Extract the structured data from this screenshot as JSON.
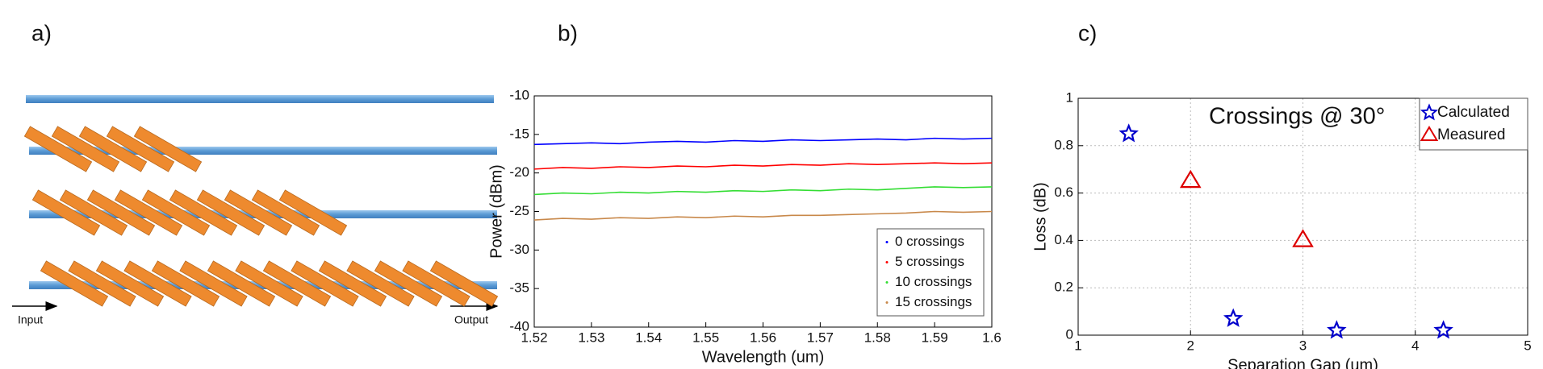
{
  "panel_labels": [
    "a)",
    "b)",
    "c)"
  ],
  "diagram": {
    "input_label": "Input",
    "output_label": "Output"
  },
  "chart_data": [
    {
      "type": "line",
      "xlabel": "Wavelength (um)",
      "ylabel": "Power (dBm)",
      "x": [
        1.52,
        1.525,
        1.53,
        1.535,
        1.54,
        1.545,
        1.55,
        1.555,
        1.56,
        1.565,
        1.57,
        1.575,
        1.58,
        1.585,
        1.59,
        1.595,
        1.6
      ],
      "series": [
        {
          "name": "0 crossings",
          "color": "#0000ff",
          "values": [
            -16.3,
            -16.2,
            -16.1,
            -16.2,
            -16.0,
            -15.9,
            -16.0,
            -15.8,
            -15.9,
            -15.7,
            -15.8,
            -15.7,
            -15.6,
            -15.7,
            -15.5,
            -15.6,
            -15.5
          ]
        },
        {
          "name": "5 crossings",
          "color": "#ff0000",
          "values": [
            -19.5,
            -19.3,
            -19.4,
            -19.2,
            -19.3,
            -19.1,
            -19.2,
            -19.0,
            -19.1,
            -18.9,
            -19.0,
            -18.8,
            -18.9,
            -18.8,
            -18.7,
            -18.8,
            -18.7
          ]
        },
        {
          "name": "10 crossings",
          "color": "#33dd33",
          "values": [
            -22.8,
            -22.6,
            -22.7,
            -22.5,
            -22.6,
            -22.4,
            -22.5,
            -22.3,
            -22.4,
            -22.2,
            -22.3,
            -22.1,
            -22.2,
            -22.0,
            -21.8,
            -21.9,
            -21.8
          ]
        },
        {
          "name": "15 crossings",
          "color": "#c8884a",
          "values": [
            -26.1,
            -25.9,
            -26.0,
            -25.8,
            -25.9,
            -25.7,
            -25.8,
            -25.6,
            -25.7,
            -25.5,
            -25.5,
            -25.4,
            -25.3,
            -25.2,
            -25.0,
            -25.1,
            -25.0
          ]
        }
      ],
      "xlim": [
        1.52,
        1.6
      ],
      "xticks": [
        1.52,
        1.53,
        1.54,
        1.55,
        1.56,
        1.57,
        1.58,
        1.59,
        1.6
      ],
      "ylim": [
        -40,
        -10
      ],
      "yticks": [
        -40,
        -35,
        -30,
        -25,
        -20,
        -15,
        -10
      ],
      "grid": false,
      "legend": "lower right"
    },
    {
      "type": "scatter",
      "annotation": "Crossings @ 30°",
      "xlabel": "Separation Gap (um)",
      "ylabel": "Loss (dB)",
      "series": [
        {
          "name": "Calculated",
          "color": "#0000cc",
          "marker": "star",
          "x": [
            1.45,
            2.38,
            3.3,
            4.25
          ],
          "values": [
            0.85,
            0.07,
            0.02,
            0.02
          ]
        },
        {
          "name": "Measured",
          "color": "#dd0000",
          "marker": "triangle",
          "x": [
            2,
            3
          ],
          "values": [
            0.65,
            0.4
          ]
        }
      ],
      "xlim": [
        1,
        5
      ],
      "xticks": [
        1,
        2,
        3,
        4,
        5
      ],
      "ylim": [
        0,
        1
      ],
      "yticks": [
        0,
        0.2,
        0.4,
        0.6,
        0.8,
        1
      ],
      "grid": true,
      "legend": "upper right"
    }
  ]
}
